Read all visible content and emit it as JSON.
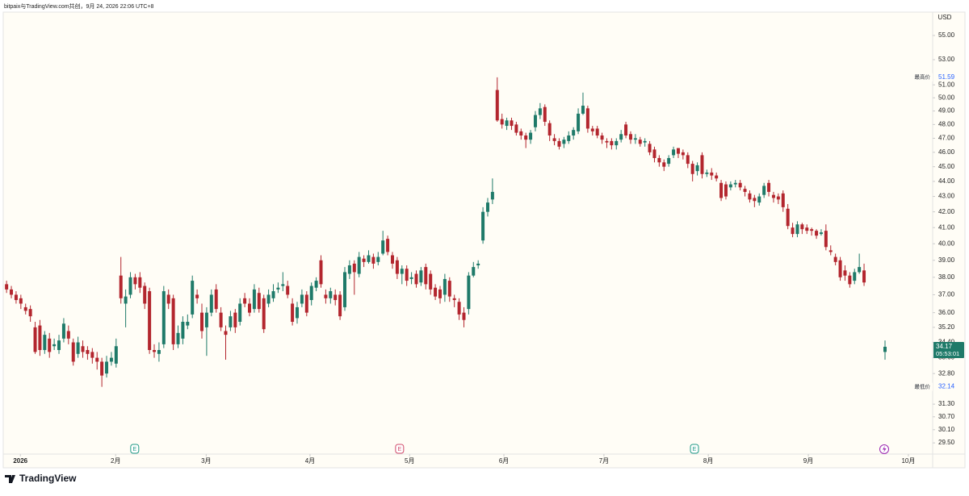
{
  "source": "bitpaix与TradingView.com共创，9月 24, 2026 22:06 UTC+8",
  "footer": "TradingView",
  "chart_data": {
    "type": "candlestick",
    "currency": "USD",
    "log_scale": true,
    "up_color": "#1f7a69",
    "down_color": "#b3262e",
    "xlim": [
      -0.7,
      194.4
    ],
    "xticks": [
      {
        "value": 2.9,
        "label": "2026"
      },
      {
        "value": 22.9,
        "label": "2月"
      },
      {
        "value": 41.9,
        "label": "3月"
      },
      {
        "value": 63.7,
        "label": "4月"
      },
      {
        "value": 84.6,
        "label": "5月"
      },
      {
        "value": 104.4,
        "label": "6月"
      },
      {
        "value": 125.4,
        "label": "7月"
      },
      {
        "value": 147.3,
        "label": "8月"
      },
      {
        "value": 168.3,
        "label": "9月"
      },
      {
        "value": 189.3,
        "label": "10月"
      }
    ],
    "ylim": [
      29.0,
      57.0
    ],
    "yticks": [
      {
        "value": 55,
        "label": "55.00"
      },
      {
        "value": 53,
        "label": "53.00"
      },
      {
        "value": 51,
        "label": "51.00"
      },
      {
        "value": 50,
        "label": "50.00"
      },
      {
        "value": 49,
        "label": "49.00"
      },
      {
        "value": 48,
        "label": "48.00"
      },
      {
        "value": 47,
        "label": "47.00"
      },
      {
        "value": 46,
        "label": "46.00"
      },
      {
        "value": 45,
        "label": "45.00"
      },
      {
        "value": 44,
        "label": "44.00"
      },
      {
        "value": 43,
        "label": "43.00"
      },
      {
        "value": 42,
        "label": "42.00"
      },
      {
        "value": 41,
        "label": "41.00"
      },
      {
        "value": 40,
        "label": "40.00"
      },
      {
        "value": 39,
        "label": "39.00"
      },
      {
        "value": 38,
        "label": "38.00"
      },
      {
        "value": 37,
        "label": "37.00"
      },
      {
        "value": 36,
        "label": "36.00"
      },
      {
        "value": 35.2,
        "label": "35.20"
      },
      {
        "value": 34.4,
        "label": "34.40"
      },
      {
        "value": 33.6,
        "label": "33.60"
      },
      {
        "value": 32.8,
        "label": "32.80"
      },
      {
        "value": 31.3,
        "label": "31.30"
      },
      {
        "value": 30.7,
        "label": "30.70"
      },
      {
        "value": 30.1,
        "label": "30.10"
      },
      {
        "value": 29.5,
        "label": "29.50"
      }
    ],
    "x": [
      0,
      1,
      2,
      3,
      4,
      5,
      6,
      7,
      8,
      9,
      10,
      11,
      12,
      13,
      14,
      15,
      16,
      17,
      18,
      19,
      20,
      21,
      22,
      23,
      24,
      25,
      26,
      27,
      28,
      29,
      30,
      31,
      32,
      33,
      34,
      35,
      36,
      37,
      38,
      39,
      40,
      41,
      42,
      43,
      44,
      45,
      46,
      47,
      48,
      49,
      50,
      51,
      52,
      53,
      54,
      55,
      56,
      57,
      58,
      59,
      60,
      61,
      62,
      63,
      64,
      65,
      66,
      67,
      68,
      69,
      70,
      71,
      72,
      73,
      74,
      75,
      76,
      77,
      78,
      79,
      80,
      81,
      82,
      83,
      84,
      85,
      86,
      87,
      88,
      89,
      90,
      91,
      92,
      93,
      94,
      95,
      96,
      97,
      98,
      99,
      100,
      101,
      102,
      103,
      104,
      105,
      106,
      107,
      108,
      109,
      110,
      111,
      112,
      113,
      114,
      115,
      116,
      117,
      118,
      119,
      120,
      121,
      122,
      123,
      124,
      125,
      126,
      127,
      128,
      129,
      130,
      131,
      132,
      133,
      134,
      135,
      136,
      137,
      138,
      139,
      140,
      141,
      142,
      143,
      144,
      145,
      146,
      147,
      148,
      149,
      150,
      151,
      152,
      153,
      154,
      155,
      156,
      157,
      158,
      159,
      160,
      161,
      162,
      163,
      164,
      165,
      166,
      167,
      168,
      169,
      170,
      171,
      172,
      173,
      174,
      175,
      176,
      177,
      178,
      179,
      180,
      184.4
    ],
    "open": [
      37.6,
      37.3,
      37.0,
      36.8,
      36.3,
      36.2,
      35.2,
      35.3,
      34.0,
      34.6,
      34.2,
      34.0,
      34.6,
      35.0,
      34.4,
      33.8,
      34.2,
      34.0,
      33.9,
      33.6,
      33.4,
      32.8,
      33.4,
      33.3,
      38.1,
      36.5,
      37.0,
      38.0,
      38.0,
      37.5,
      37.2,
      34.0,
      33.8,
      34.3,
      37.0,
      36.8,
      34.3,
      34.6,
      35.3,
      35.9,
      37.0,
      36.0,
      35.2,
      36.0,
      37.3,
      36.0,
      35.0,
      35.2,
      36.0,
      35.5,
      36.8,
      36.5,
      36.2,
      37.1,
      36.8,
      36.5,
      36.8,
      37.3,
      37.5,
      37.5,
      36.5,
      35.7,
      36.5,
      37.0,
      36.7,
      37.4,
      39.0,
      37.0,
      36.8,
      37.0,
      37.0,
      36.3,
      38.2,
      38.8,
      38.2,
      39.1,
      38.9,
      39.2,
      38.9,
      39.4,
      40.3,
      39.3,
      39.0,
      38.2,
      38.5,
      37.9,
      38.2,
      37.7,
      38.6,
      38.2,
      37.4,
      37.3,
      37.0,
      37.8,
      36.8,
      36.6,
      36.0,
      36.2,
      38.1,
      38.7,
      40.2,
      42.0,
      42.8,
      50.6,
      48.4,
      47.9,
      48.3,
      48.0,
      47.5,
      47.2,
      46.9,
      47.8,
      48.7,
      49.3,
      48.1,
      47.0,
      46.8,
      46.6,
      46.8,
      47.2,
      47.5,
      48.8,
      49.2,
      47.7,
      47.7,
      47.2,
      46.8,
      46.8,
      46.5,
      46.9,
      48.0,
      47.3,
      46.9,
      46.9,
      46.7,
      46.6,
      46.2,
      45.6,
      45.3,
      45.2,
      45.8,
      46.3,
      46.0,
      45.8,
      45.2,
      44.7,
      45.8,
      44.5,
      44.6,
      44.4,
      43.9,
      43.8,
      43.6,
      43.8,
      43.9,
      43.5,
      43.2,
      42.9,
      42.6,
      43.1,
      43.9,
      43.1,
      43.0,
      43.2,
      42.2,
      41.0,
      40.6,
      41.2,
      41.0,
      40.9,
      40.8,
      40.6,
      40.8,
      39.6,
      39.2,
      39.0,
      38.4,
      38.1,
      37.8,
      38.3,
      38.4,
      33.9
    ],
    "high": [
      37.8,
      37.5,
      37.2,
      37.0,
      36.5,
      36.4,
      35.5,
      35.6,
      35.0,
      34.9,
      34.6,
      34.8,
      35.7,
      35.3,
      34.6,
      34.7,
      34.5,
      34.2,
      34.1,
      33.9,
      33.6,
      33.7,
      33.9,
      34.6,
      39.2,
      37.3,
      38.3,
      38.2,
      38.3,
      37.7,
      37.4,
      34.3,
      34.4,
      37.5,
      37.3,
      37.0,
      35.3,
      35.8,
      35.9,
      38.1,
      37.3,
      36.5,
      36.3,
      37.3,
      37.6,
      36.3,
      35.3,
      36.1,
      36.2,
      36.8,
      37.1,
      36.8,
      37.6,
      37.4,
      37.0,
      37.3,
      37.6,
      37.7,
      38.3,
      37.8,
      36.8,
      36.6,
      37.3,
      37.2,
      37.7,
      38.0,
      39.3,
      37.3,
      37.4,
      37.3,
      37.2,
      38.6,
      39.0,
      39.0,
      39.5,
      39.3,
      39.6,
      39.4,
      39.5,
      40.8,
      40.5,
      39.5,
      39.2,
      38.7,
      38.7,
      38.3,
      38.4,
      38.6,
      38.8,
      38.4,
      37.6,
      37.5,
      38.2,
      38.0,
      37.0,
      36.8,
      36.3,
      38.3,
      38.9,
      39.0,
      42.3,
      42.9,
      44.2,
      51.59,
      48.8,
      48.5,
      48.5,
      48.2,
      47.7,
      47.4,
      47.6,
      49.0,
      49.6,
      49.5,
      48.3,
      47.3,
      47.0,
      47.1,
      47.5,
      47.8,
      49.2,
      50.4,
      49.4,
      47.9,
      47.9,
      47.4,
      47.0,
      47.0,
      47.0,
      47.6,
      48.2,
      47.5,
      47.3,
      47.1,
      47.0,
      46.8,
      46.4,
      45.8,
      45.5,
      45.8,
      46.4,
      46.3,
      46.2,
      46.0,
      45.4,
      45.3,
      46.0,
      44.8,
      44.9,
      44.6,
      44.1,
      44.0,
      44.0,
      44.1,
      44.1,
      43.7,
      43.4,
      43.1,
      43.2,
      43.9,
      44.1,
      43.3,
      43.2,
      43.4,
      42.5,
      41.3,
      41.4,
      41.3,
      41.2,
      41.0,
      40.9,
      40.9,
      41.2,
      39.9,
      39.4,
      39.2,
      38.7,
      38.3,
      38.5,
      39.4,
      38.8,
      34.5
    ],
    "low": [
      37.1,
      36.8,
      36.5,
      36.2,
      35.9,
      35.5,
      33.8,
      33.7,
      33.8,
      33.6,
      34.0,
      33.8,
      34.4,
      34.3,
      33.2,
      33.6,
      33.6,
      33.5,
      33.3,
      33.0,
      32.14,
      32.6,
      33.2,
      33.1,
      36.5,
      35.2,
      36.8,
      37.3,
      37.1,
      36.2,
      33.8,
      33.6,
      33.4,
      34.1,
      36.2,
      34.0,
      34.1,
      34.3,
      35.1,
      35.7,
      36.5,
      34.6,
      33.7,
      35.8,
      36.0,
      35.0,
      33.5,
      35.0,
      34.9,
      35.3,
      36.3,
      35.8,
      36.0,
      36.0,
      34.9,
      36.3,
      36.6,
      37.1,
      37.2,
      36.8,
      35.3,
      35.4,
      36.3,
      35.8,
      36.4,
      37.2,
      37.4,
      36.5,
      36.5,
      36.4,
      35.6,
      36.1,
      37.9,
      37.0,
      38.0,
      38.6,
      38.8,
      38.5,
      38.7,
      39.3,
      39.3,
      38.5,
      37.9,
      37.6,
      37.5,
      37.6,
      37.4,
      37.5,
      37.3,
      37.0,
      36.7,
      36.5,
      36.6,
      36.6,
      36.3,
      35.6,
      35.2,
      35.9,
      38.0,
      38.5,
      40.0,
      41.7,
      42.5,
      48.2,
      47.7,
      47.6,
      47.6,
      47.2,
      46.9,
      46.3,
      46.6,
      47.5,
      48.4,
      47.9,
      46.8,
      46.5,
      46.2,
      46.3,
      46.6,
      46.9,
      47.3,
      48.7,
      47.4,
      47.2,
      47.0,
      46.6,
      46.3,
      46.2,
      46.2,
      46.7,
      47.0,
      46.6,
      46.6,
      46.4,
      46.4,
      45.8,
      45.3,
      45.0,
      44.7,
      45.0,
      45.6,
      45.6,
      45.5,
      44.9,
      44.0,
      44.4,
      44.2,
      44.3,
      44.1,
      44.0,
      42.7,
      42.8,
      43.4,
      43.6,
      43.4,
      43.0,
      42.6,
      42.3,
      42.4,
      42.9,
      43.0,
      42.6,
      42.5,
      42.0,
      40.9,
      40.4,
      40.4,
      40.6,
      40.6,
      40.5,
      40.3,
      40.5,
      39.6,
      39.3,
      38.7,
      37.8,
      37.8,
      37.4,
      37.6,
      38.2,
      37.5,
      33.5
    ],
    "close": [
      37.3,
      37.0,
      36.7,
      36.5,
      36.1,
      35.8,
      33.9,
      34.0,
      34.8,
      33.9,
      34.3,
      34.5,
      35.4,
      34.6,
      33.4,
      34.4,
      33.9,
      33.8,
      33.6,
      33.4,
      32.7,
      33.4,
      33.6,
      34.2,
      36.8,
      36.9,
      38.0,
      37.6,
      37.4,
      36.5,
      34.0,
      33.9,
      34.0,
      37.2,
      36.5,
      34.3,
      34.9,
      35.5,
      35.5,
      37.8,
      36.8,
      35.0,
      36.0,
      37.0,
      36.2,
      35.2,
      34.8,
      35.8,
      35.2,
      36.5,
      36.5,
      36.0,
      37.3,
      36.2,
      35.1,
      37.0,
      37.2,
      37.4,
      37.6,
      37.0,
      35.5,
      36.3,
      37.0,
      36.0,
      37.5,
      37.8,
      37.6,
      36.8,
      37.2,
      36.7,
      35.8,
      38.3,
      38.7,
      38.3,
      39.2,
      38.9,
      39.3,
      38.8,
      39.2,
      40.2,
      39.5,
      38.8,
      38.2,
      38.5,
      37.8,
      38.0,
      37.6,
      38.4,
      37.6,
      37.3,
      36.9,
      36.8,
      37.9,
      36.9,
      36.7,
      35.9,
      35.6,
      38.1,
      38.6,
      38.8,
      42.0,
      42.6,
      43.3,
      48.3,
      48.0,
      48.3,
      47.9,
      47.4,
      47.2,
      46.9,
      47.4,
      48.7,
      49.2,
      48.2,
      47.2,
      46.8,
      46.4,
      46.9,
      47.2,
      47.6,
      48.8,
      49.4,
      47.7,
      47.5,
      47.2,
      46.9,
      46.7,
      46.5,
      46.8,
      47.3,
      47.2,
      46.9,
      47.0,
      46.6,
      46.8,
      46.0,
      45.6,
      45.3,
      45.0,
      45.6,
      46.2,
      45.9,
      45.8,
      45.2,
      44.5,
      45.1,
      44.5,
      44.6,
      44.4,
      44.2,
      42.9,
      43.0,
      43.8,
      43.9,
      43.6,
      43.3,
      42.8,
      42.7,
      43.0,
      43.7,
      43.3,
      42.9,
      42.8,
      42.3,
      41.1,
      40.6,
      41.2,
      40.9,
      40.8,
      40.8,
      40.5,
      40.7,
      39.8,
      39.5,
      38.9,
      38.0,
      38.1,
      37.6,
      38.3,
      38.6,
      37.7,
      34.17
    ],
    "price_labels": [
      {
        "label": "最高价",
        "value": 51.59
      },
      {
        "label": "最低价",
        "value": 32.14
      }
    ],
    "last_price": {
      "value": 34.17,
      "countdown": "05:53:01"
    },
    "events": [
      {
        "x": 26.9,
        "label": "E",
        "color": "#1f9a85"
      },
      {
        "x": 82.5,
        "label": "E",
        "color": "#d14a6a"
      },
      {
        "x": 144.4,
        "label": "E",
        "color": "#1f9a85"
      }
    ]
  }
}
